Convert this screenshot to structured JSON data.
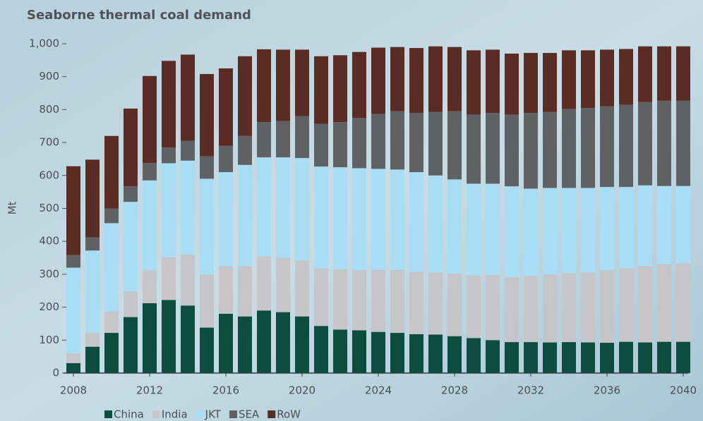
{
  "chart_data": {
    "type": "stacked_bar",
    "title": "Seaborne thermal coal demand",
    "y_label": "Mt",
    "x": [
      2008,
      2009,
      2010,
      2011,
      2012,
      2013,
      2014,
      2015,
      2016,
      2017,
      2018,
      2019,
      2020,
      2021,
      2022,
      2023,
      2024,
      2025,
      2026,
      2027,
      2028,
      2029,
      2030,
      2031,
      2032,
      2033,
      2034,
      2035,
      2036,
      2037,
      2038,
      2039,
      2040
    ],
    "xlim": [
      2007.5,
      2040.5
    ],
    "xticks": [
      2008,
      2012,
      2016,
      2020,
      2024,
      2028,
      2032,
      2036,
      2040
    ],
    "ylim": [
      0,
      1000
    ],
    "yticks": [
      0,
      100,
      200,
      300,
      400,
      500,
      600,
      700,
      800,
      900,
      {
        "value": 1000,
        "label": "1,000"
      }
    ],
    "legend": "bottom",
    "series": [
      {
        "name": "China",
        "color": "#0c4d3f",
        "values": [
          30,
          80,
          122,
          170,
          212,
          222,
          205,
          138,
          180,
          172,
          190,
          185,
          172,
          143,
          132,
          130,
          125,
          122,
          118,
          117,
          112,
          106,
          100,
          94,
          94,
          93,
          94,
          93,
          92,
          95,
          93,
          95,
          95
        ]
      },
      {
        "name": "India",
        "color": "#c6c6ca",
        "values": [
          30,
          42,
          65,
          78,
          100,
          130,
          155,
          162,
          145,
          153,
          165,
          165,
          170,
          175,
          183,
          182,
          188,
          191,
          189,
          188,
          190,
          190,
          198,
          198,
          201,
          207,
          209,
          212,
          220,
          223,
          232,
          235,
          238
        ]
      },
      {
        "name": "JKT",
        "color": "#a9dcf5",
        "values": [
          260,
          250,
          268,
          272,
          273,
          285,
          285,
          290,
          285,
          307,
          300,
          305,
          311,
          309,
          310,
          310,
          307,
          305,
          303,
          295,
          286,
          279,
          277,
          275,
          265,
          262,
          259,
          257,
          253,
          247,
          245,
          238,
          235
        ]
      },
      {
        "name": "SEA",
        "color": "#5f6165",
        "values": [
          38,
          40,
          45,
          47,
          53,
          48,
          60,
          68,
          80,
          88,
          107,
          110,
          127,
          130,
          137,
          153,
          167,
          177,
          180,
          193,
          207,
          210,
          215,
          218,
          230,
          231,
          240,
          243,
          245,
          250,
          253,
          259,
          259
        ]
      },
      {
        "name": "RoW",
        "color": "#5a2c24",
        "values": [
          270,
          236,
          220,
          236,
          264,
          263,
          262,
          250,
          235,
          242,
          221,
          217,
          202,
          205,
          203,
          200,
          201,
          195,
          197,
          199,
          195,
          195,
          192,
          185,
          182,
          179,
          178,
          175,
          172,
          169,
          169,
          165,
          165
        ]
      }
    ]
  }
}
